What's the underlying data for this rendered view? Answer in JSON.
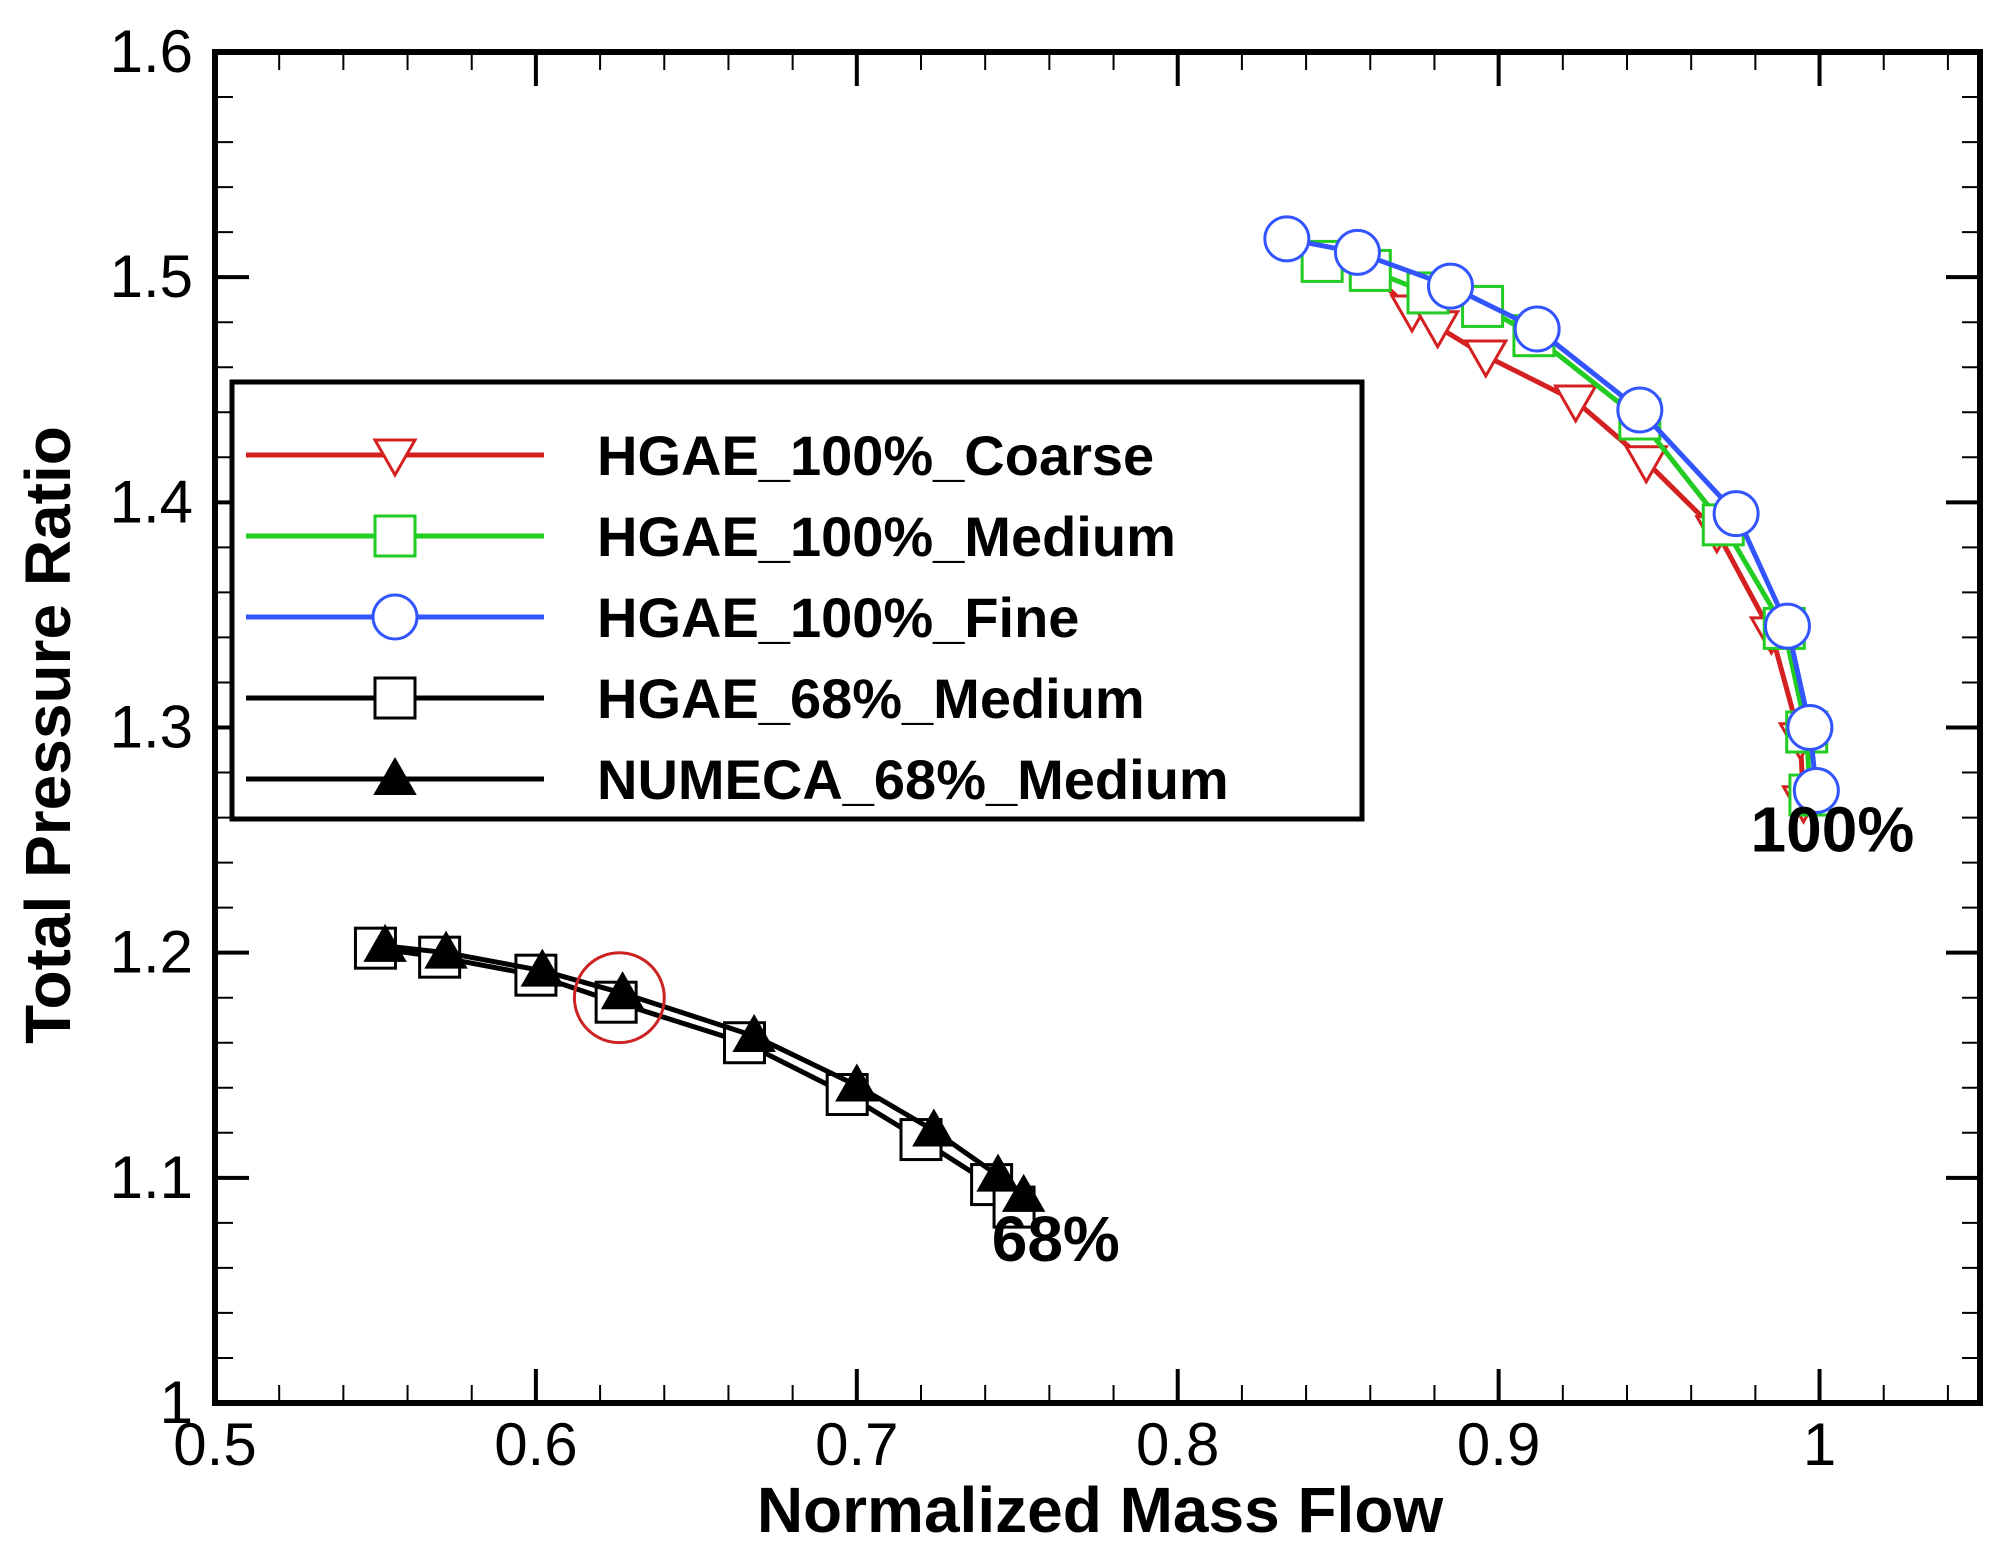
{
  "chart_data": {
    "type": "line",
    "title": "",
    "xlabel": "Normalized Mass Flow",
    "ylabel": "Total Pressure Ratio",
    "xlim": [
      0.5,
      1.05
    ],
    "ylim": [
      1.0,
      1.6
    ],
    "xticks": [
      0.5,
      0.6,
      0.7,
      0.8,
      0.9,
      1.0
    ],
    "xtick_labels": [
      "0.5",
      "0.6",
      "0.7",
      "0.8",
      "0.9",
      "1"
    ],
    "yticks": [
      1.0,
      1.1,
      1.2,
      1.3,
      1.4,
      1.5,
      1.6
    ],
    "ytick_labels": [
      "1",
      "1.1",
      "1.2",
      "1.3",
      "1.4",
      "1.5",
      "1.6"
    ],
    "grid": false,
    "legend_position": "upper-left",
    "series": [
      {
        "name": "HGAE_100%_Coarse",
        "color": "#d42020",
        "marker": "triangle-down-open",
        "x": [
          0.858,
          0.873,
          0.881,
          0.896,
          0.924,
          0.946,
          0.968,
          0.985,
          0.994,
          0.995
        ],
        "y": [
          1.505,
          1.485,
          1.478,
          1.465,
          1.445,
          1.418,
          1.387,
          1.342,
          1.295,
          1.267
        ]
      },
      {
        "name": "HGAE_100%_Medium",
        "color": "#22cc22",
        "marker": "square-open",
        "x": [
          0.845,
          0.86,
          0.878,
          0.895,
          0.911,
          0.944,
          0.97,
          0.989,
          0.996,
          0.997
        ],
        "y": [
          1.507,
          1.503,
          1.493,
          1.487,
          1.474,
          1.437,
          1.39,
          1.344,
          1.298,
          1.27
        ]
      },
      {
        "name": "HGAE_100%_Fine",
        "color": "#3355ff",
        "marker": "circle-open",
        "x": [
          0.834,
          0.856,
          0.885,
          0.912,
          0.944,
          0.974,
          0.99,
          0.997,
          0.999
        ],
        "y": [
          1.517,
          1.511,
          1.496,
          1.477,
          1.441,
          1.395,
          1.345,
          1.3,
          1.272
        ]
      },
      {
        "name": "HGAE_68%_Medium",
        "color": "#000000",
        "marker": "square-open",
        "x": [
          0.55,
          0.57,
          0.6,
          0.625,
          0.665,
          0.697,
          0.72,
          0.742,
          0.749
        ],
        "y": [
          1.202,
          1.198,
          1.19,
          1.178,
          1.16,
          1.137,
          1.117,
          1.097,
          1.087
        ]
      },
      {
        "name": "NUMECA_68%_Medium",
        "color": "#000000",
        "marker": "triangle-up-filled",
        "x": [
          0.553,
          0.572,
          0.602,
          0.627,
          0.668,
          0.7,
          0.724,
          0.744,
          0.752
        ],
        "y": [
          1.203,
          1.2,
          1.192,
          1.182,
          1.163,
          1.141,
          1.121,
          1.101,
          1.092
        ]
      }
    ],
    "annotations": [
      {
        "text": "100%",
        "x": 1.004,
        "y": 1.245
      },
      {
        "text": "68%",
        "x": 0.762,
        "y": 1.063
      }
    ],
    "highlight": {
      "x": 0.626,
      "y": 1.18,
      "radius_x": 0.014,
      "color": "#cc2222"
    }
  }
}
